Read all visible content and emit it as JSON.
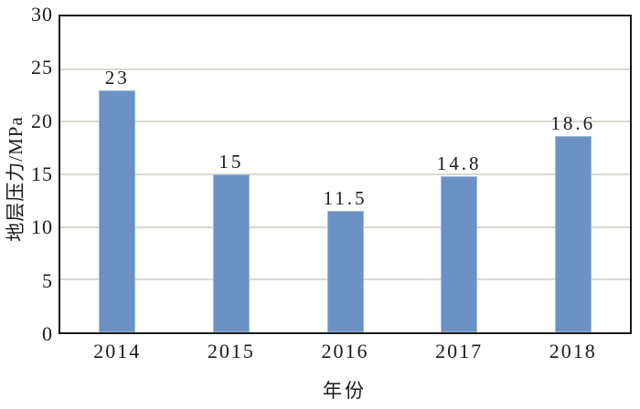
{
  "chart_data": {
    "type": "bar",
    "title": "",
    "categories": [
      "2014",
      "2015",
      "2016",
      "2017",
      "2018"
    ],
    "values": [
      23,
      15,
      11.5,
      14.8,
      18.6
    ],
    "data_labels": [
      "23",
      "15",
      "11.5",
      "14.8",
      "18.6"
    ],
    "xlabel": "年份",
    "ylabel": "地层压力/MPa",
    "ylim": [
      0,
      30
    ],
    "yticks": [
      0,
      5,
      10,
      15,
      20,
      25,
      30
    ],
    "grid": "horizontal",
    "legend_position": "none",
    "bar_color": "#6B91C5",
    "bar_border_color": "#9FB9DB",
    "gridline_color": "#DCD8D1",
    "axis_frame_color": "#1A1A1A",
    "background_color": "#FFFFFF"
  }
}
